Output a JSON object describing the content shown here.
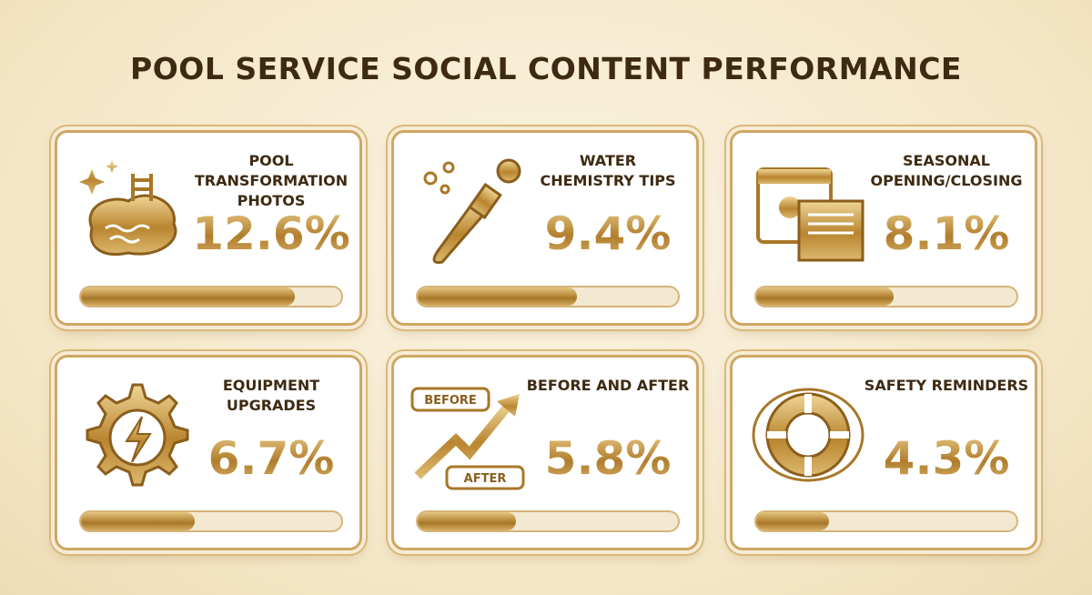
{
  "chart_data": {
    "type": "bar",
    "title": "POOL SERVICE SOCIAL CONTENT PERFORMANCE",
    "categories": [
      "POOL TRANSFORMATION PHOTOS",
      "WATER CHEMISTRY TIPS",
      "SEASONAL OPENING/CLOSING",
      "EQUIPMENT UPGRADES",
      "BEFORE AND AFTER",
      "SAFETY REMINDERS"
    ],
    "values": [
      12.6,
      9.4,
      8.1,
      6.7,
      5.8,
      4.3
    ],
    "value_labels": [
      "12.6%",
      "9.4%",
      "8.1%",
      "6.7%",
      "5.8%",
      "4.3%"
    ],
    "annotations": [
      "BEFORE",
      "AFTER"
    ],
    "color": "#c99a45"
  }
}
